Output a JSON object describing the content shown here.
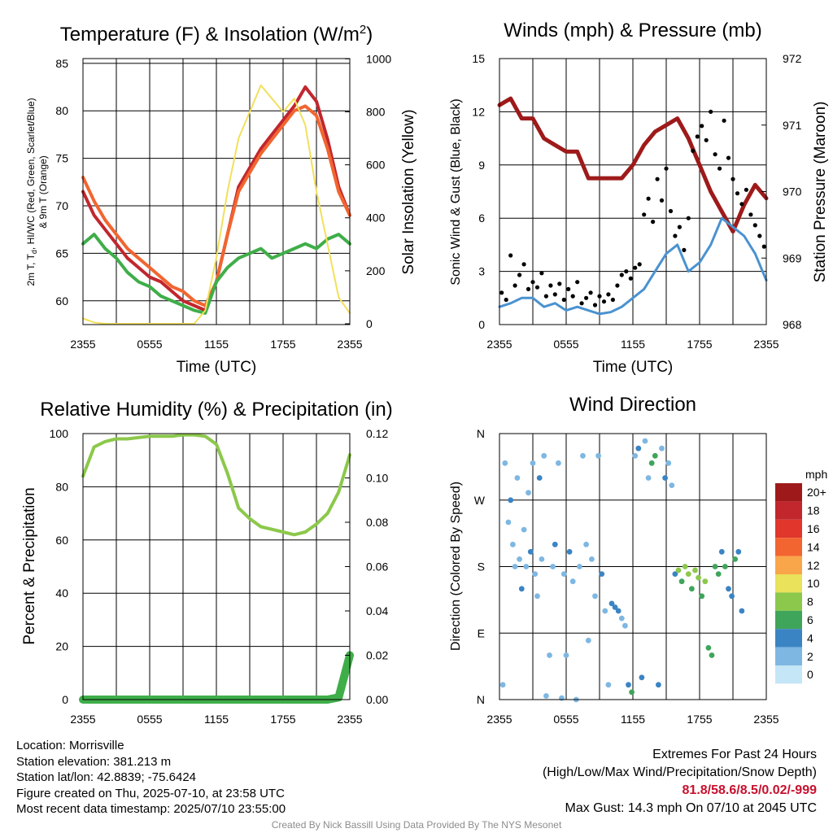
{
  "panels": {
    "temperature": {
      "title": "Temperature (F) & Insolation (W/m",
      "title_sup": "2",
      "title_end": ")",
      "ylabel_line1": "2m T, T",
      "ylabel_sub": "d",
      "ylabel_line1_end": ", HI/WC (Red, Green, Scarlet/Blue)",
      "ylabel_line2": "& 9m T (Orange)",
      "right_label": "Solar Insolation (Yellow)",
      "xlabel": "Time (UTC)"
    },
    "winds": {
      "title": "Winds (mph) & Pressure (mb)",
      "ylabel": "Sonic Wind & Gust (Blue, Black)",
      "right_label": "Station Pressure (Maroon)",
      "xlabel": "Time (UTC)"
    },
    "humidity": {
      "title": "Relative Humidity (%) & Precipitation (in)",
      "ylabel": "Percent & Precipitation"
    },
    "direction": {
      "title": "Wind Direction",
      "ylabel": "Direction (Colored By Speed)",
      "colorbar_title": "mph",
      "colorbar_labels": [
        "20+",
        "18",
        "16",
        "14",
        "12",
        "10",
        "8",
        "6",
        "4",
        "2",
        "0"
      ],
      "colorbar_colors": [
        "#9e1a1a",
        "#c1272d",
        "#e0362c",
        "#f26530",
        "#f9a64a",
        "#e9e25a",
        "#8cc84b",
        "#3fa55b",
        "#3b84c4",
        "#7eb7e2",
        "#c5e6f6"
      ]
    }
  },
  "info": {
    "location": "Location: Morrisville",
    "elevation": "Station elevation: 381.213 m",
    "latlon": "Station lat/lon: 42.8839; -75.6424",
    "created": "Figure created on Thu, 2025-07-10, at 23:58 UTC",
    "recent": "Most recent data timestamp: 2025/07/10 23:55:00"
  },
  "extremes": {
    "heading": "Extremes For Past 24 Hours",
    "subheading": "(High/Low/Max Wind/Precipitation/Snow Depth)",
    "values": "81.8/58.6/8.5/0.02/-999",
    "max_gust": "Max Gust: 14.3 mph On 07/10 at 2045 UTC"
  },
  "credit": "Created By Nick Bassill Using Data Provided By The NYS Mesonet",
  "chart_data": [
    {
      "type": "line",
      "title": "Temperature (F) & Insolation (W/m2)",
      "xlabel": "Time (UTC)",
      "ylabel": "2m T, Td, HI/WC (Red, Green, Scarlet/Blue) & 9m T (Orange)",
      "y2label": "Solar Insolation (Yellow)",
      "x_ticks": [
        "2355",
        "0555",
        "1155",
        "1755",
        "2355"
      ],
      "y_ticks": [
        60,
        65,
        70,
        75,
        80,
        85
      ],
      "y2_ticks": [
        0,
        200,
        400,
        600,
        800,
        1000
      ],
      "ylim": [
        57.5,
        85.5
      ],
      "y2lim": [
        -3,
        1001
      ],
      "x_hours": [
        0,
        1,
        2,
        3,
        4,
        5,
        6,
        7,
        8,
        9,
        10,
        11,
        12,
        13,
        14,
        15,
        16,
        17,
        18,
        19,
        20,
        21,
        22,
        23,
        24
      ],
      "series": [
        {
          "name": "2m T",
          "color": "#c1272d",
          "axis": "left",
          "width": 4,
          "values": [
            71.5,
            69.0,
            67.5,
            66.0,
            64.5,
            63.5,
            62.5,
            62.0,
            61.0,
            60.0,
            59.5,
            59.0,
            62.0,
            67.0,
            72.0,
            74.0,
            76.0,
            77.5,
            79.0,
            80.5,
            82.5,
            81.0,
            77.0,
            72.0,
            69.0
          ]
        },
        {
          "name": "9m T",
          "color": "#f26530",
          "axis": "left",
          "width": 4,
          "values": [
            73.0,
            70.5,
            68.5,
            67.0,
            65.5,
            64.5,
            63.5,
            62.5,
            61.5,
            61.0,
            60.0,
            59.5,
            62.0,
            67.0,
            71.5,
            73.5,
            75.5,
            77.0,
            78.5,
            80.0,
            80.5,
            79.5,
            76.0,
            71.5,
            69.0
          ]
        },
        {
          "name": "2m Td",
          "color": "#3fae49",
          "axis": "left",
          "width": 4,
          "values": [
            66.0,
            67.0,
            65.5,
            64.5,
            63.0,
            62.0,
            61.5,
            60.5,
            60.0,
            59.5,
            59.0,
            58.7,
            62.0,
            63.5,
            64.5,
            65.0,
            65.5,
            64.5,
            65.0,
            65.5,
            66.0,
            65.5,
            66.5,
            67.0,
            66.0
          ]
        },
        {
          "name": "Solar Insolation",
          "color": "#f2e05c",
          "axis": "right",
          "width": 2,
          "values": [
            20,
            5,
            0,
            0,
            0,
            0,
            0,
            0,
            0,
            0,
            0,
            50,
            250,
            500,
            700,
            800,
            900,
            850,
            800,
            850,
            750,
            500,
            300,
            100,
            40
          ]
        }
      ]
    },
    {
      "type": "line",
      "title": "Winds (mph) & Pressure (mb)",
      "xlabel": "Time (UTC)",
      "ylabel": "Sonic Wind & Gust (Blue, Black)",
      "y2label": "Station Pressure (Maroon)",
      "x_ticks": [
        "2355",
        "0555",
        "1155",
        "1755",
        "2355"
      ],
      "y_ticks": [
        0,
        3,
        6,
        9,
        12,
        15
      ],
      "y2_ticks": [
        968,
        969,
        970,
        971,
        972
      ],
      "ylim": [
        0,
        15
      ],
      "y2lim": [
        968,
        972
      ],
      "x_hours": [
        0,
        1,
        2,
        3,
        4,
        5,
        6,
        7,
        8,
        9,
        10,
        11,
        12,
        13,
        14,
        15,
        16,
        17,
        18,
        19,
        20,
        21,
        22,
        23,
        24
      ],
      "series": [
        {
          "name": "Station Pressure",
          "color": "#9e1a1a",
          "axis": "right",
          "width": 5,
          "values": [
            971.3,
            971.4,
            971.1,
            971.1,
            970.8,
            970.7,
            970.6,
            970.6,
            970.2,
            970.2,
            970.2,
            970.2,
            970.4,
            970.7,
            970.9,
            971.0,
            971.1,
            970.8,
            970.4,
            970.0,
            969.7,
            969.4,
            969.8,
            970.1,
            969.9
          ]
        },
        {
          "name": "Sonic Wind",
          "color": "#4a92d0",
          "axis": "left",
          "width": 3,
          "values": [
            1.0,
            1.2,
            1.5,
            1.5,
            1.0,
            1.2,
            0.8,
            1.0,
            0.8,
            0.6,
            0.7,
            1.0,
            1.5,
            2.0,
            3.0,
            4.0,
            4.5,
            3.0,
            3.5,
            4.5,
            6.0,
            5.5,
            5.0,
            4.0,
            2.5
          ]
        }
      ],
      "gust_points": [
        [
          0.2,
          1.8
        ],
        [
          0.6,
          1.4
        ],
        [
          1.0,
          3.9
        ],
        [
          1.4,
          2.2
        ],
        [
          1.8,
          2.8
        ],
        [
          2.2,
          3.4
        ],
        [
          2.6,
          2.0
        ],
        [
          3.0,
          2.4
        ],
        [
          3.4,
          2.1
        ],
        [
          3.8,
          2.9
        ],
        [
          4.2,
          1.6
        ],
        [
          4.6,
          2.2
        ],
        [
          5.0,
          1.7
        ],
        [
          5.4,
          2.3
        ],
        [
          5.8,
          1.4
        ],
        [
          6.2,
          2.0
        ],
        [
          6.6,
          1.6
        ],
        [
          7.0,
          2.4
        ],
        [
          7.4,
          1.2
        ],
        [
          7.8,
          1.5
        ],
        [
          8.2,
          1.8
        ],
        [
          8.6,
          1.1
        ],
        [
          9.0,
          1.6
        ],
        [
          9.4,
          1.3
        ],
        [
          9.8,
          1.7
        ],
        [
          10.2,
          1.4
        ],
        [
          10.6,
          2.2
        ],
        [
          11.0,
          2.8
        ],
        [
          11.4,
          3.0
        ],
        [
          11.8,
          2.6
        ],
        [
          12.2,
          3.2
        ],
        [
          12.6,
          3.4
        ],
        [
          13.0,
          6.2
        ],
        [
          13.4,
          7.1
        ],
        [
          13.8,
          5.8
        ],
        [
          14.2,
          8.2
        ],
        [
          14.6,
          7.0
        ],
        [
          15.0,
          8.8
        ],
        [
          15.4,
          6.4
        ],
        [
          15.8,
          5.0
        ],
        [
          16.2,
          5.5
        ],
        [
          16.6,
          4.2
        ],
        [
          17.0,
          6.0
        ],
        [
          17.4,
          9.8
        ],
        [
          17.8,
          10.6
        ],
        [
          18.2,
          11.2
        ],
        [
          18.6,
          10.4
        ],
        [
          19.0,
          12.0
        ],
        [
          19.4,
          9.6
        ],
        [
          19.8,
          8.8
        ],
        [
          20.2,
          11.5
        ],
        [
          20.6,
          9.4
        ],
        [
          21.0,
          8.2
        ],
        [
          21.4,
          7.4
        ],
        [
          21.8,
          6.8
        ],
        [
          22.2,
          7.6
        ],
        [
          22.6,
          6.2
        ],
        [
          23.0,
          5.6
        ],
        [
          23.4,
          5.0
        ],
        [
          23.8,
          4.4
        ]
      ]
    },
    {
      "type": "line",
      "title": "Relative Humidity (%) & Precipitation (in)",
      "ylabel": "Percent & Precipitation",
      "x_ticks": [
        "2355",
        "0555",
        "1155",
        "1755",
        "2355"
      ],
      "y_ticks": [
        0,
        20,
        40,
        60,
        80,
        100
      ],
      "y2_ticks": [
        "0.00",
        "0.02",
        "0.04",
        "0.06",
        "0.08",
        "0.10",
        "0.12"
      ],
      "ylim": [
        0,
        100
      ],
      "y2lim": [
        0,
        0.12
      ],
      "x_hours": [
        0,
        1,
        2,
        3,
        4,
        5,
        6,
        7,
        8,
        9,
        10,
        11,
        12,
        13,
        14,
        15,
        16,
        17,
        18,
        19,
        20,
        21,
        22,
        23,
        24
      ],
      "series": [
        {
          "name": "Relative Humidity",
          "color": "#8cc84b",
          "axis": "left",
          "width": 4,
          "values": [
            84,
            95,
            97,
            98,
            98,
            98.5,
            99,
            99,
            99,
            99.5,
            99.5,
            99,
            96,
            85,
            72,
            68,
            65,
            64,
            63,
            62,
            63,
            66,
            70,
            78,
            92
          ]
        },
        {
          "name": "Precipitation",
          "color": "#3fae49",
          "axis": "right",
          "width": 10,
          "values": [
            0,
            0,
            0,
            0,
            0,
            0,
            0,
            0,
            0,
            0,
            0,
            0,
            0,
            0,
            0,
            0,
            0,
            0,
            0,
            0,
            0,
            0,
            0,
            0.001,
            0.02
          ]
        }
      ]
    },
    {
      "type": "scatter",
      "title": "Wind Direction",
      "ylabel": "Direction (Colored By Speed)",
      "x_ticks": [
        "2355",
        "0555",
        "1155",
        "1755",
        "2355"
      ],
      "y_ticks": [
        "N",
        "E",
        "S",
        "W",
        "N"
      ],
      "ylim": [
        0,
        360
      ],
      "colorbar": {
        "title": "mph",
        "labels": [
          "20+",
          "18",
          "16",
          "14",
          "12",
          "10",
          "8",
          "6",
          "4",
          "2",
          "0"
        ]
      },
      "points": [
        [
          0.3,
          20,
          1
        ],
        [
          0.5,
          320,
          2
        ],
        [
          0.8,
          240,
          1
        ],
        [
          1.0,
          270,
          4
        ],
        [
          1.2,
          210,
          1
        ],
        [
          1.4,
          180,
          2
        ],
        [
          1.6,
          300,
          1
        ],
        [
          1.8,
          190,
          2
        ],
        [
          2.0,
          150,
          4
        ],
        [
          2.2,
          230,
          1
        ],
        [
          2.4,
          180,
          2
        ],
        [
          2.6,
          280,
          1
        ],
        [
          2.8,
          200,
          3
        ],
        [
          3.0,
          320,
          2
        ],
        [
          3.2,
          170,
          1
        ],
        [
          3.4,
          140,
          2
        ],
        [
          3.6,
          300,
          4
        ],
        [
          3.8,
          190,
          1
        ],
        [
          4.0,
          330,
          2
        ],
        [
          4.2,
          5,
          1
        ],
        [
          4.5,
          60,
          2
        ],
        [
          4.8,
          180,
          1
        ],
        [
          5.0,
          210,
          3
        ],
        [
          5.3,
          320,
          2
        ],
        [
          5.6,
          2,
          1
        ],
        [
          5.8,
          170,
          2
        ],
        [
          6.0,
          60,
          1
        ],
        [
          6.3,
          200,
          3
        ],
        [
          6.6,
          160,
          2
        ],
        [
          6.9,
          0,
          1
        ],
        [
          7.2,
          180,
          2
        ],
        [
          7.5,
          330,
          1
        ],
        [
          7.8,
          210,
          2
        ],
        [
          8.0,
          80,
          1
        ],
        [
          8.3,
          190,
          2
        ],
        [
          8.6,
          140,
          2
        ],
        [
          8.9,
          330,
          1
        ],
        [
          9.2,
          170,
          3
        ],
        [
          9.5,
          120,
          1
        ],
        [
          9.8,
          20,
          1
        ],
        [
          10.1,
          130,
          3
        ],
        [
          10.4,
          125,
          4
        ],
        [
          10.7,
          120,
          3
        ],
        [
          11.0,
          110,
          2
        ],
        [
          11.3,
          100,
          2
        ],
        [
          11.6,
          20,
          4
        ],
        [
          11.9,
          10,
          5
        ],
        [
          12.2,
          330,
          1
        ],
        [
          12.5,
          340,
          3
        ],
        [
          12.8,
          30,
          4
        ],
        [
          13.1,
          350,
          2
        ],
        [
          13.4,
          300,
          1
        ],
        [
          13.7,
          320,
          5
        ],
        [
          14.0,
          330,
          6
        ],
        [
          14.3,
          20,
          4
        ],
        [
          14.6,
          340,
          2
        ],
        [
          14.9,
          300,
          4
        ],
        [
          15.2,
          320,
          1
        ],
        [
          15.5,
          290,
          2
        ],
        [
          15.8,
          170,
          4
        ],
        [
          16.1,
          175,
          7
        ],
        [
          16.4,
          160,
          6
        ],
        [
          16.7,
          180,
          8
        ],
        [
          17.0,
          170,
          7
        ],
        [
          17.3,
          150,
          5
        ],
        [
          17.6,
          175,
          8
        ],
        [
          17.9,
          165,
          7
        ],
        [
          18.2,
          140,
          6
        ],
        [
          18.5,
          160,
          7
        ],
        [
          18.8,
          70,
          6
        ],
        [
          19.1,
          60,
          5
        ],
        [
          19.4,
          180,
          6
        ],
        [
          19.7,
          170,
          5
        ],
        [
          20.0,
          200,
          4
        ],
        [
          20.3,
          180,
          5
        ],
        [
          20.6,
          150,
          4
        ],
        [
          20.9,
          140,
          3
        ],
        [
          21.2,
          190,
          5
        ],
        [
          21.5,
          200,
          4
        ],
        [
          21.8,
          120,
          3
        ]
      ]
    }
  ]
}
